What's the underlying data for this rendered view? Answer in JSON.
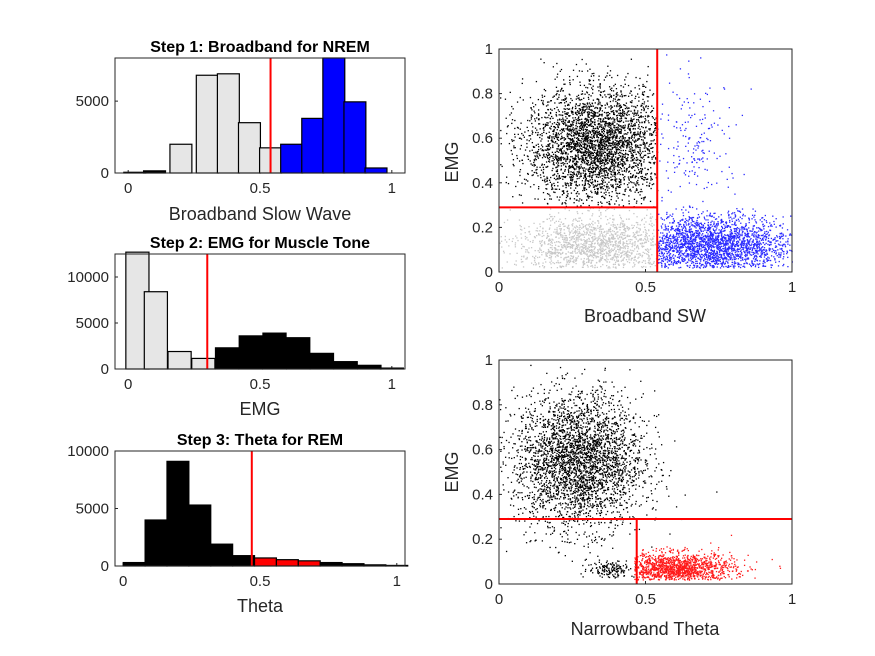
{
  "colors": {
    "gray": "#e6e6e6",
    "black": "#000000",
    "blue": "#0000ff",
    "red": "#ff0000",
    "scatter_blue": "#2a2aff",
    "scatter_gray": "#c8c8c8",
    "scatter_red": "#ff1a1a"
  },
  "chart_data": [
    {
      "id": "hist1",
      "type": "bar",
      "title": "Step 1: Broadband for NREM",
      "xlabel": "Broadband Slow Wave",
      "ylabel": "",
      "xlim": [
        -0.05,
        1.05
      ],
      "ylim": [
        0,
        8000
      ],
      "xticks": [
        "0",
        "0.5",
        "1"
      ],
      "yticks": [
        "0",
        "5000"
      ],
      "bin_centers": [
        0.025,
        0.1,
        0.2,
        0.3,
        0.38,
        0.46,
        0.54,
        0.62,
        0.7,
        0.78,
        0.86,
        0.94
      ],
      "values": [
        50,
        150,
        2000,
        6800,
        6900,
        3500,
        1750,
        2000,
        3800,
        8000,
        4950,
        350
      ],
      "bar_colors": [
        "black",
        "black",
        "gray",
        "gray",
        "gray",
        "gray",
        "gray",
        "blue",
        "blue",
        "blue",
        "blue",
        "blue"
      ],
      "threshold": 0.54
    },
    {
      "id": "hist2",
      "type": "bar",
      "title": "Step 2: EMG for Muscle Tone",
      "xlabel": "EMG",
      "ylabel": "",
      "xlim": [
        -0.05,
        1.05
      ],
      "ylim": [
        0,
        12500
      ],
      "xticks": [
        "0",
        "0.5",
        "1"
      ],
      "yticks": [
        "0",
        "5000",
        "10000"
      ],
      "bin_centers": [
        0.035,
        0.105,
        0.195,
        0.285,
        0.375,
        0.465,
        0.555,
        0.645,
        0.735,
        0.825,
        0.915,
        1.0
      ],
      "values": [
        12700,
        8400,
        1900,
        1150,
        2300,
        3600,
        3900,
        3400,
        1700,
        800,
        400,
        100
      ],
      "bar_colors": [
        "gray",
        "gray",
        "gray",
        "gray",
        "black",
        "black",
        "black",
        "black",
        "black",
        "black",
        "black",
        "black"
      ],
      "threshold": 0.3
    },
    {
      "id": "hist3",
      "type": "bar",
      "title": "Step 3: Theta for REM",
      "xlabel": "Theta",
      "ylabel": "",
      "xlim": [
        -0.03,
        1.03
      ],
      "ylim": [
        0,
        10000
      ],
      "xticks": [
        "0",
        "0.5",
        "1"
      ],
      "yticks": [
        "0",
        "5000",
        "10000"
      ],
      "bin_centers": [
        0.04,
        0.12,
        0.2,
        0.28,
        0.36,
        0.44,
        0.52,
        0.6,
        0.68,
        0.76,
        0.84,
        0.92,
        1.0
      ],
      "values": [
        300,
        4000,
        9100,
        5300,
        1900,
        900,
        700,
        550,
        450,
        300,
        200,
        100,
        50
      ],
      "bar_colors": [
        "black",
        "black",
        "black",
        "black",
        "black",
        "black",
        "red",
        "red",
        "red",
        "black",
        "black",
        "black",
        "black"
      ],
      "threshold": 0.47
    },
    {
      "id": "scatter1",
      "type": "scatter",
      "title": "",
      "xlabel": "Broadband SW",
      "ylabel": "EMG",
      "xlim": [
        0,
        1
      ],
      "ylim": [
        0,
        1
      ],
      "xticks": [
        "0",
        "0.5",
        "1"
      ],
      "yticks": [
        "0",
        "0.2",
        "0.4",
        "0.6",
        "0.8",
        "1"
      ],
      "threshold_lines": {
        "vertical_x": 0.54,
        "horizontal_y": 0.29,
        "horizontal_x_range": [
          0,
          0.54
        ]
      },
      "clusters": [
        {
          "color": "black",
          "n": 3200,
          "cx": 0.33,
          "cy": 0.57,
          "sx": 0.12,
          "sy": 0.13,
          "clip": "x<0.54&y>0.29"
        },
        {
          "color": "blue",
          "n": 2200,
          "cx": 0.72,
          "cy": 0.12,
          "sx": 0.14,
          "sy": 0.07,
          "clip": "x>0.54&y<0.3"
        },
        {
          "color": "blue",
          "n": 180,
          "cx": 0.66,
          "cy": 0.58,
          "sx": 0.08,
          "sy": 0.14,
          "clip": "x>0.54"
        },
        {
          "color": "gray",
          "n": 1400,
          "cx": 0.33,
          "cy": 0.12,
          "sx": 0.14,
          "sy": 0.07,
          "clip": "x<0.54&y<0.29"
        }
      ]
    },
    {
      "id": "scatter2",
      "type": "scatter",
      "title": "",
      "xlabel": "Narrowband Theta",
      "ylabel": "EMG",
      "xlim": [
        0,
        1
      ],
      "ylim": [
        0,
        1
      ],
      "xticks": [
        "0",
        "0.5",
        "1"
      ],
      "yticks": [
        "0",
        "0.2",
        "0.4",
        "0.6",
        "0.8",
        "1"
      ],
      "threshold_lines": {
        "vertical_x": 0.47,
        "horizontal_y": 0.29,
        "vertical_y_range": [
          0,
          0.29
        ]
      },
      "clusters": [
        {
          "color": "black",
          "n": 3200,
          "cx": 0.27,
          "cy": 0.55,
          "sx": 0.11,
          "sy": 0.15,
          "clip": "y>0.1"
        },
        {
          "color": "black",
          "n": 150,
          "cx": 0.38,
          "cy": 0.07,
          "sx": 0.04,
          "sy": 0.02,
          "clip": "x<0.47&y<0.15"
        },
        {
          "color": "red",
          "n": 1300,
          "cx": 0.6,
          "cy": 0.07,
          "sx": 0.1,
          "sy": 0.035,
          "clip": "x>0.46&y<0.29"
        }
      ]
    }
  ]
}
